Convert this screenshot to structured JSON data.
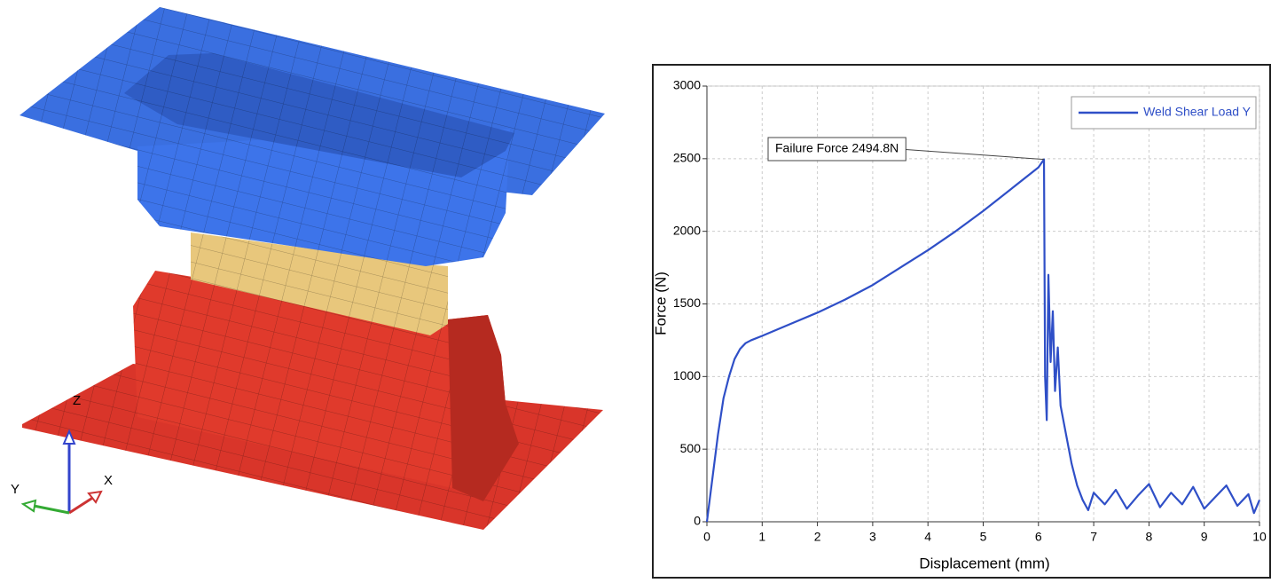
{
  "model": {
    "triad": {
      "z": "Z",
      "y": "Y",
      "x": "X"
    }
  },
  "chart_data": {
    "type": "line",
    "xlabel": "Displacement (mm)",
    "ylabel": "Force (N)",
    "x": [
      0,
      0.1,
      0.2,
      0.3,
      0.4,
      0.5,
      0.6,
      0.7,
      0.8,
      1,
      1.5,
      2,
      2.5,
      3,
      3.5,
      4,
      4.5,
      5,
      5.5,
      6,
      6.1,
      6.12,
      6.15,
      6.18,
      6.22,
      6.26,
      6.3,
      6.35,
      6.4,
      6.5,
      6.6,
      6.7,
      6.8,
      6.9,
      7,
      7.2,
      7.4,
      7.6,
      7.8,
      8,
      8.2,
      8.4,
      8.6,
      8.8,
      9,
      9.2,
      9.4,
      9.6,
      9.8,
      9.9,
      10
    ],
    "series": [
      {
        "name": "Weld Shear Load Y",
        "color": "#2f4fc7",
        "values": [
          0,
          300,
          600,
          850,
          1000,
          1120,
          1190,
          1230,
          1250,
          1280,
          1360,
          1440,
          1530,
          1630,
          1750,
          1870,
          2000,
          2140,
          2290,
          2440,
          2494.8,
          1000,
          700,
          1700,
          1100,
          1450,
          900,
          1200,
          800,
          600,
          400,
          250,
          150,
          80,
          200,
          120,
          220,
          90,
          180,
          260,
          100,
          200,
          120,
          240,
          90,
          170,
          250,
          110,
          190,
          60,
          150
        ]
      }
    ],
    "xlim": [
      0,
      10
    ],
    "ylim": [
      0,
      3000
    ],
    "xticks": [
      0,
      1,
      2,
      3,
      4,
      5,
      6,
      7,
      8,
      9,
      10
    ],
    "yticks": [
      0,
      500,
      1000,
      1500,
      2000,
      2500,
      3000
    ],
    "grid": true,
    "legend": "top-right",
    "annotations": [
      {
        "text": "Failure Force 2494.8N",
        "x": 6.1,
        "y": 2494.8
      }
    ]
  }
}
